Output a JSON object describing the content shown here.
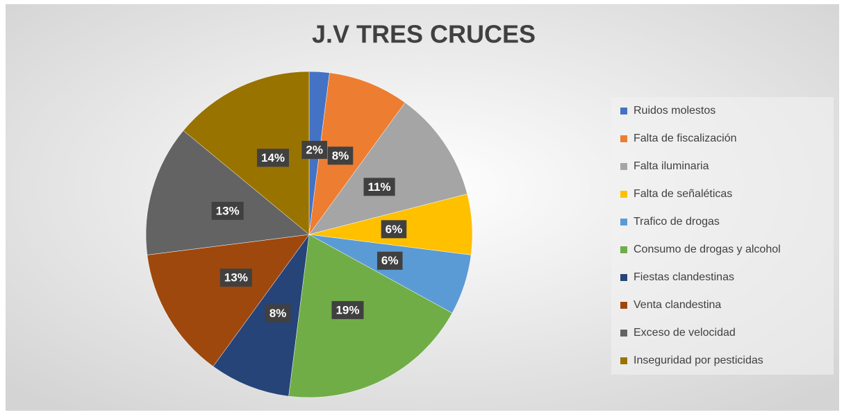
{
  "chart_data": {
    "type": "pie",
    "title": "J.V TRES CRUCES",
    "categories": [
      "Ruidos molestos",
      "Falta de fiscalización",
      "Falta iluminaria",
      "Falta de señaléticas",
      "Trafico de drogas",
      "Consumo de drogas y alcohol",
      "Fiestas clandestinas",
      "Venta clandestina",
      "Exceso de velocidad",
      "Inseguridad por pesticidas"
    ],
    "values": [
      2,
      8,
      11,
      6,
      6,
      19,
      8,
      13,
      13,
      14
    ],
    "value_labels": [
      "2%",
      "8%",
      "11%",
      "6%",
      "6%",
      "19%",
      "8%",
      "13%",
      "13%",
      "14%"
    ],
    "colors": [
      "#4472c4",
      "#ed7d31",
      "#a5a5a5",
      "#ffc000",
      "#5b9bd5",
      "#70ad47",
      "#264478",
      "#9e480e",
      "#636363",
      "#997300"
    ],
    "legend": "right"
  }
}
